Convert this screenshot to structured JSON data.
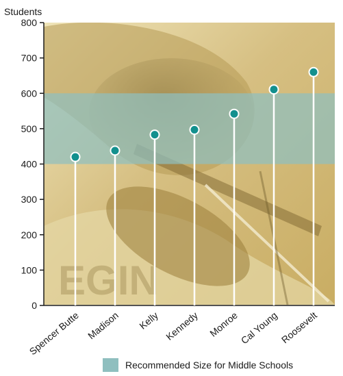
{
  "chart_data": {
    "type": "lollipop",
    "ylabel": "Students",
    "ylim": [
      0,
      800
    ],
    "yticks": [
      0,
      100,
      200,
      300,
      400,
      500,
      600,
      700,
      800
    ],
    "categories": [
      "Spencer Butte",
      "Madison",
      "Kelly",
      "Kennedy",
      "Monroe",
      "Cal Young",
      "Roosevelt"
    ],
    "values": [
      420,
      438,
      483,
      497,
      542,
      611,
      660
    ],
    "recommended_band": [
      400,
      600
    ],
    "legend": [
      {
        "label": "Recommended Size for Middle Schools",
        "color": "#8fbfbf"
      }
    ],
    "background": "photo of a student playing violin, sepia-tinted",
    "colors": {
      "marker": "#12908e",
      "stem": "#ffffff",
      "band": "#8fbfbf",
      "photo_tone": "#d9c488"
    }
  }
}
